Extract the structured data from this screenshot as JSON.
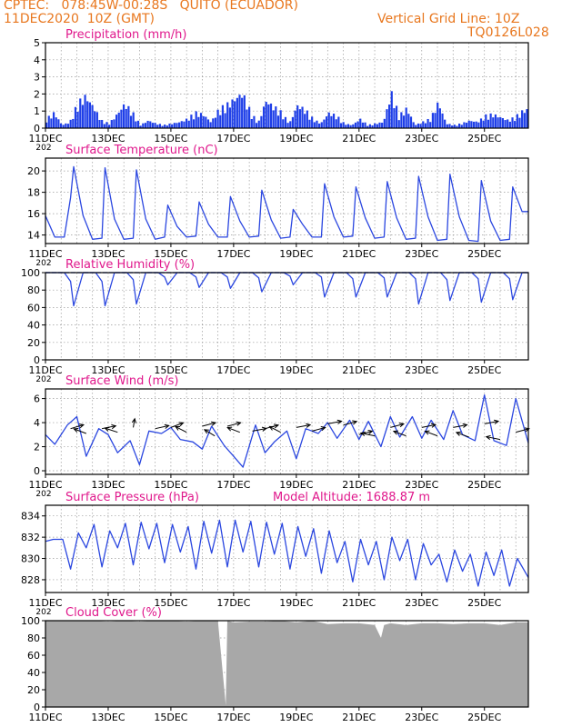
{
  "header": {
    "line1": "CPTEC:   078:45W-00:28S   QUITO (ECUADOR)",
    "line2": "11DEC2020  10Z (GMT)",
    "grid_note": "Vertical Grid Line: 10Z",
    "code": "TQ0126L028"
  },
  "colors": {
    "header": "#e8771e",
    "title": "#e0188c",
    "line": "#2b47e0",
    "bar": "#1f3fe8",
    "cloud": "#a8a8a8",
    "arrow": "#000000"
  },
  "x_axis": {
    "labels": [
      "11DEC",
      "13DEC",
      "15DEC",
      "17DEC",
      "19DEC",
      "21DEC",
      "23DEC",
      "25DEC"
    ],
    "label_days": [
      11,
      13,
      15,
      17,
      19,
      21,
      23,
      25
    ],
    "year_stub": "202",
    "domain_days": [
      11,
      26.4
    ]
  },
  "chart_data": [
    {
      "type": "bar",
      "title": "Precipitation (mm/h)",
      "ylim": [
        0,
        5
      ],
      "yticks": [
        "0",
        "1",
        "2",
        "3",
        "4",
        "5"
      ],
      "grid": true,
      "x_day": [
        11.0,
        11.25,
        11.5,
        11.75,
        12.0,
        12.25,
        12.5,
        12.75,
        13.0,
        13.25,
        13.5,
        13.75,
        14.0,
        14.25,
        14.5,
        14.75,
        15.0,
        15.25,
        15.5,
        15.75,
        16.0,
        16.25,
        16.5,
        16.75,
        17.0,
        17.25,
        17.5,
        17.75,
        18.0,
        18.25,
        18.5,
        18.75,
        19.0,
        19.25,
        19.5,
        19.75,
        20.0,
        20.25,
        20.5,
        20.75,
        21.0,
        21.25,
        21.5,
        21.75,
        22.0,
        22.25,
        22.5,
        22.75,
        23.0,
        23.25,
        23.5,
        23.75,
        24.0,
        24.25,
        24.5,
        24.75,
        25.0,
        25.25,
        25.5,
        25.75,
        26.0,
        26.25
      ],
      "values": [
        0.6,
        1.0,
        0.2,
        0.4,
        1.6,
        2.1,
        1.4,
        0.5,
        0.3,
        0.9,
        1.6,
        1.0,
        0.2,
        0.5,
        0.3,
        0.2,
        0.3,
        0.4,
        0.6,
        1.0,
        0.9,
        0.4,
        1.2,
        1.5,
        1.9,
        2.3,
        1.1,
        0.3,
        1.8,
        1.4,
        1.0,
        0.3,
        1.5,
        1.2,
        0.6,
        0.3,
        1.0,
        0.8,
        0.3,
        0.2,
        0.6,
        0.2,
        0.3,
        0.4,
        2.3,
        0.8,
        1.3,
        0.2,
        0.4,
        0.6,
        1.7,
        0.3,
        0.2,
        0.3,
        0.5,
        0.4,
        0.8,
        0.9,
        0.7,
        0.5,
        0.8,
        1.2
      ]
    },
    {
      "type": "line",
      "title": "Surface Temperature (nC)",
      "ylim": [
        13.2,
        21.2
      ],
      "yticks": [
        "14",
        "16",
        "18",
        "20"
      ],
      "ytick_values": [
        14,
        16,
        18,
        20
      ],
      "grid": true,
      "x_day": [
        11.0,
        11.3,
        11.6,
        11.8,
        11.9,
        12.2,
        12.5,
        12.8,
        12.9,
        13.2,
        13.5,
        13.8,
        13.9,
        14.2,
        14.5,
        14.8,
        14.9,
        15.2,
        15.5,
        15.8,
        15.9,
        16.2,
        16.5,
        16.8,
        16.9,
        17.2,
        17.5,
        17.8,
        17.9,
        18.2,
        18.5,
        18.8,
        18.9,
        19.2,
        19.5,
        19.8,
        19.9,
        20.2,
        20.5,
        20.8,
        20.9,
        21.2,
        21.5,
        21.8,
        21.9,
        22.2,
        22.5,
        22.8,
        22.9,
        23.2,
        23.5,
        23.8,
        23.9,
        24.2,
        24.5,
        24.8,
        24.9,
        25.2,
        25.5,
        25.8,
        25.9,
        26.2,
        26.4
      ],
      "values": [
        15.8,
        13.8,
        13.8,
        17.5,
        20.4,
        15.8,
        13.6,
        13.7,
        20.3,
        15.5,
        13.6,
        13.7,
        20.1,
        15.5,
        13.6,
        13.8,
        16.8,
        14.8,
        13.8,
        13.9,
        17.1,
        15.0,
        13.8,
        13.8,
        17.6,
        15.3,
        13.8,
        13.9,
        18.2,
        15.4,
        13.7,
        13.8,
        16.4,
        15.0,
        13.8,
        13.8,
        18.8,
        15.7,
        13.8,
        13.9,
        18.5,
        15.6,
        13.7,
        13.8,
        19.0,
        15.6,
        13.6,
        13.7,
        19.5,
        15.7,
        13.5,
        13.6,
        19.7,
        15.7,
        13.5,
        13.4,
        19.1,
        15.3,
        13.5,
        13.6,
        18.5,
        16.2,
        16.2
      ]
    },
    {
      "type": "line",
      "title": "Relative Humidity (%)",
      "ylim": [
        0,
        100
      ],
      "yticks": [
        "0",
        "20",
        "40",
        "60",
        "80",
        "100"
      ],
      "grid": true,
      "x_day": [
        11.0,
        11.6,
        11.8,
        11.9,
        12.2,
        12.6,
        12.8,
        12.9,
        13.2,
        13.6,
        13.8,
        13.9,
        14.2,
        14.6,
        14.8,
        14.9,
        15.2,
        15.6,
        15.8,
        15.9,
        16.2,
        16.6,
        16.8,
        16.9,
        17.2,
        17.6,
        17.8,
        17.9,
        18.2,
        18.6,
        18.8,
        18.9,
        19.2,
        19.6,
        19.8,
        19.9,
        20.2,
        20.6,
        20.8,
        20.9,
        21.2,
        21.6,
        21.8,
        21.9,
        22.2,
        22.6,
        22.8,
        22.9,
        23.2,
        23.6,
        23.8,
        23.9,
        24.2,
        24.6,
        24.8,
        24.9,
        25.2,
        25.6,
        25.8,
        25.9,
        26.2,
        26.4
      ],
      "values": [
        100,
        100,
        90,
        62,
        100,
        100,
        90,
        62,
        100,
        100,
        92,
        64,
        100,
        100,
        95,
        86,
        100,
        100,
        95,
        83,
        100,
        100,
        95,
        82,
        100,
        100,
        94,
        78,
        100,
        100,
        96,
        86,
        100,
        100,
        95,
        72,
        100,
        100,
        93,
        72,
        100,
        100,
        94,
        72,
        100,
        100,
        93,
        64,
        100,
        100,
        92,
        68,
        100,
        100,
        93,
        66,
        100,
        100,
        93,
        69,
        100,
        100
      ]
    },
    {
      "type": "line",
      "title": "Surface Wind (m/s)",
      "ylim": [
        -0.3,
        6.8
      ],
      "yticks": [
        "0",
        "2",
        "4",
        "6"
      ],
      "ytick_values": [
        0,
        2,
        4,
        6
      ],
      "grid": true,
      "x_day": [
        11.0,
        11.3,
        11.7,
        12.0,
        12.3,
        12.7,
        13.0,
        13.3,
        13.7,
        14.0,
        14.3,
        14.7,
        15.0,
        15.3,
        15.7,
        16.0,
        16.3,
        16.7,
        17.0,
        17.3,
        17.7,
        18.0,
        18.3,
        18.7,
        19.0,
        19.3,
        19.7,
        20.0,
        20.3,
        20.7,
        21.0,
        21.3,
        21.7,
        22.0,
        22.3,
        22.7,
        23.0,
        23.3,
        23.7,
        24.0,
        24.3,
        24.7,
        25.0,
        25.3,
        25.7,
        26.0,
        26.4
      ],
      "values": [
        3.0,
        2.2,
        3.8,
        4.5,
        1.2,
        3.5,
        3.0,
        1.5,
        2.5,
        0.5,
        3.3,
        3.1,
        3.6,
        2.6,
        2.4,
        1.8,
        3.7,
        2.1,
        1.2,
        0.3,
        3.8,
        1.5,
        2.4,
        3.3,
        1.0,
        3.5,
        3.1,
        4.0,
        2.7,
        4.2,
        2.6,
        4.1,
        2.0,
        4.5,
        2.8,
        4.5,
        2.7,
        4.2,
        2.6,
        5.0,
        3.0,
        2.5,
        6.3,
        2.5,
        2.1,
        6.0,
        2.3
      ],
      "arrows_day": [
        11.8,
        12.3,
        12.8,
        13.3,
        13.8,
        14.5,
        15.0,
        15.5,
        16.0,
        16.4,
        16.8,
        17.2,
        17.6,
        18.0,
        18.5,
        19.0,
        19.5,
        20.0,
        20.5,
        21.0,
        21.5,
        22.0,
        22.5,
        23.0,
        23.5,
        24.0,
        24.5,
        25.0,
        25.5,
        26.0
      ],
      "arrows_speed": [
        3.5,
        3.1,
        3.5,
        3.2,
        3.6,
        3.5,
        3.6,
        3.2,
        3.7,
        2.9,
        3.7,
        3.2,
        3.3,
        3.5,
        3.2,
        3.6,
        3.3,
        3.9,
        3.8,
        3.0,
        2.9,
        3.6,
        2.9,
        3.6,
        2.9,
        3.6,
        2.8,
        3.9,
        2.6,
        3.2
      ],
      "arrows_dx": [
        0.9,
        -0.8,
        0.9,
        -0.9,
        0.1,
        0.95,
        0.8,
        -0.7,
        0.9,
        -0.6,
        0.9,
        -0.8,
        0.95,
        0.9,
        -0.7,
        0.95,
        0.9,
        0.95,
        0.9,
        0.9,
        -0.9,
        0.9,
        -0.8,
        0.9,
        -0.8,
        0.95,
        -0.8,
        0.95,
        -0.9,
        0.9
      ],
      "arrows_dy": [
        0.45,
        0.5,
        0.3,
        0.5,
        1.0,
        0.35,
        0.5,
        0.6,
        0.4,
        0.6,
        0.4,
        0.5,
        0.3,
        0.4,
        0.6,
        0.3,
        0.4,
        0.3,
        0.4,
        0.4,
        0.3,
        0.4,
        0.5,
        0.3,
        0.5,
        0.3,
        0.5,
        0.3,
        0.3,
        0.4
      ]
    },
    {
      "type": "line",
      "title": "Surface Pressure (hPa)",
      "annotation": "Model Altitude: 1688.87 m",
      "ylim": [
        826.8,
        835.0
      ],
      "yticks": [
        "828",
        "830",
        "832",
        "834"
      ],
      "ytick_values": [
        828,
        830,
        832,
        834
      ],
      "grid": true,
      "x_day": [
        11.0,
        11.25,
        11.55,
        11.8,
        12.05,
        12.3,
        12.55,
        12.8,
        13.05,
        13.3,
        13.55,
        13.8,
        14.05,
        14.3,
        14.55,
        14.8,
        15.05,
        15.3,
        15.55,
        15.8,
        16.05,
        16.3,
        16.55,
        16.8,
        17.05,
        17.3,
        17.55,
        17.8,
        18.05,
        18.3,
        18.55,
        18.8,
        19.05,
        19.3,
        19.55,
        19.8,
        20.05,
        20.3,
        20.55,
        20.8,
        21.05,
        21.3,
        21.55,
        21.8,
        22.05,
        22.3,
        22.55,
        22.8,
        23.05,
        23.3,
        23.55,
        23.8,
        24.05,
        24.3,
        24.55,
        24.8,
        25.05,
        25.3,
        25.55,
        25.8,
        26.05,
        26.4
      ],
      "values": [
        831.6,
        831.8,
        831.8,
        829.0,
        832.4,
        831.0,
        833.2,
        829.2,
        832.6,
        831.0,
        833.3,
        829.4,
        833.4,
        830.9,
        833.3,
        829.6,
        833.2,
        830.6,
        833.0,
        829.0,
        833.5,
        830.5,
        833.6,
        829.2,
        833.6,
        830.6,
        833.5,
        829.2,
        833.4,
        830.4,
        833.3,
        829.0,
        833.0,
        830.2,
        832.8,
        828.6,
        832.6,
        829.6,
        831.6,
        827.8,
        831.8,
        829.4,
        831.6,
        828.0,
        832.0,
        829.8,
        831.8,
        828.0,
        831.4,
        829.4,
        830.4,
        827.8,
        830.8,
        828.8,
        830.4,
        827.4,
        830.6,
        828.4,
        830.8,
        827.4,
        830.0,
        828.2
      ]
    },
    {
      "type": "area",
      "title": "Cloud Cover (%)",
      "ylim": [
        0,
        100
      ],
      "yticks": [
        "0",
        "20",
        "40",
        "60",
        "80",
        "100"
      ],
      "grid": true,
      "x_day": [
        11.0,
        11.5,
        12.0,
        12.5,
        13.0,
        13.5,
        14.0,
        14.5,
        15.0,
        15.5,
        16.0,
        16.5,
        16.75,
        16.8,
        17.0,
        17.5,
        18.0,
        18.5,
        19.0,
        19.5,
        20.0,
        20.5,
        21.0,
        21.5,
        21.7,
        21.8,
        22.0,
        22.5,
        23.0,
        23.5,
        24.0,
        24.5,
        25.0,
        25.5,
        26.0,
        26.4
      ],
      "values": [
        100,
        100,
        100,
        100,
        99,
        100,
        99,
        100,
        100,
        99,
        100,
        100,
        2,
        100,
        98,
        99,
        99,
        100,
        98,
        100,
        96,
        97,
        97,
        95,
        80,
        95,
        97,
        95,
        97,
        97,
        96,
        97,
        97,
        95,
        98,
        98
      ]
    }
  ]
}
